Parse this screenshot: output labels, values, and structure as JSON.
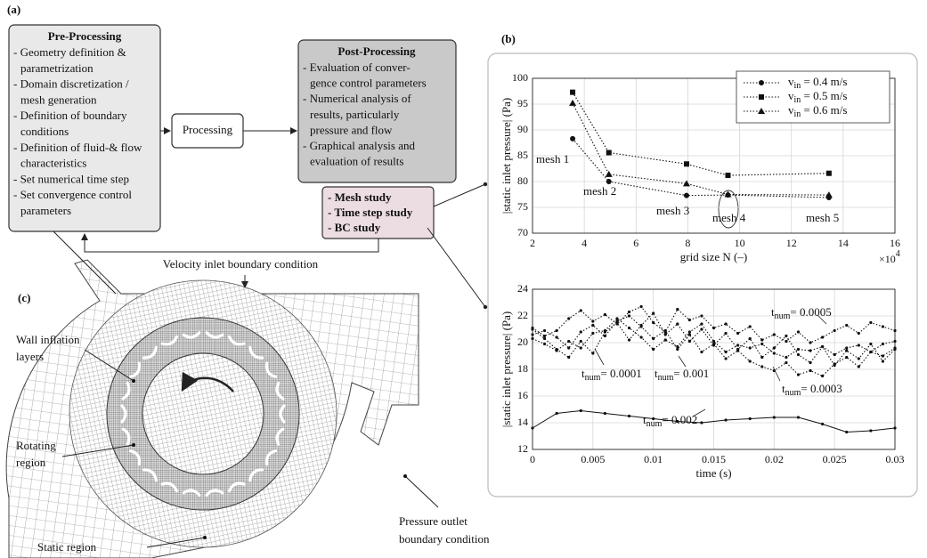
{
  "panel_labels": [
    "(a)",
    "(b)",
    "(c)"
  ],
  "flowchart": {
    "pre_processing": {
      "title": "Pre-Processing",
      "lines": [
        "- Geometry definition &",
        "parametrization",
        "- Domain discretization /",
        "mesh generation",
        "- Definition of boundary",
        "conditions",
        "- Definition of fluid-& flow",
        "characteristics",
        "- Set numerical time step",
        "- Set convergence control",
        "parameters"
      ]
    },
    "processing": "Processing",
    "post_processing": {
      "title": "Post-Processing",
      "lines": [
        "- Evaluation of conver-",
        "gence control parameters",
        "- Numerical analysis of",
        "results, particularly",
        "pressure and flow",
        "- Graphical analysis and",
        "evaluation of results"
      ]
    },
    "studies": [
      "- Mesh study",
      "- Time step study",
      "- BC study"
    ]
  },
  "mesh_labels": {
    "inlet": "Velocity inlet boundary condition",
    "wall": [
      "Wall inflation",
      "layers"
    ],
    "rotating": [
      "Rotating",
      "region"
    ],
    "static": "Static region",
    "outlet": [
      "Pressure outlet",
      "boundary condition"
    ]
  },
  "chart_data": [
    {
      "type": "line",
      "x_label": "grid size  N (–)",
      "y_label": "|static inlet pressure| (Pa)",
      "x_multiplier": {
        "base": "×10",
        "sup": "4"
      },
      "xlim": [
        2,
        16
      ],
      "xticks": [
        2,
        4,
        6,
        8,
        10,
        12,
        14,
        16
      ],
      "ylim": [
        70,
        100
      ],
      "yticks": [
        70,
        75,
        80,
        85,
        90,
        95,
        100
      ],
      "grid": true,
      "legend": "upper right",
      "series": [
        {
          "name": {
            "base": "v",
            "sub": "in",
            "rest": " = 0.4 m/s"
          },
          "color": "#111111",
          "marker": "circle",
          "x": [
            3.55,
            4.95,
            7.95,
            9.55,
            13.45
          ],
          "values": [
            88.3,
            80.0,
            77.3,
            77.4,
            76.9
          ]
        },
        {
          "name": {
            "base": "v",
            "sub": "in",
            "rest": " = 0.5 m/s"
          },
          "color": "#111111",
          "marker": "square",
          "x": [
            3.55,
            4.95,
            7.95,
            9.55,
            13.45
          ],
          "values": [
            97.3,
            85.6,
            83.4,
            81.2,
            81.6
          ]
        },
        {
          "name": {
            "base": "v",
            "sub": "in",
            "rest": " = 0.6 m/s"
          },
          "color": "#111111",
          "marker": "triangle",
          "x": [
            3.55,
            4.95,
            7.95,
            9.55,
            13.45
          ],
          "values": [
            95.2,
            81.4,
            79.6,
            77.5,
            77.4
          ]
        }
      ],
      "annotations": [
        "mesh 1",
        "mesh 2",
        "mesh 3",
        "mesh 4",
        "mesh 5"
      ]
    },
    {
      "type": "line",
      "x_label": "time (s)",
      "y_label": "|static inlet pressure| (Pa)",
      "xlim": [
        0,
        0.03
      ],
      "xticks": [
        0,
        0.005,
        0.01,
        0.015,
        0.02,
        0.025,
        0.03
      ],
      "ylim": [
        12,
        24
      ],
      "yticks": [
        12,
        14,
        16,
        18,
        20,
        22,
        24
      ],
      "grid": true,
      "series": [
        {
          "color": "#111111",
          "marker": "dot",
          "line_style": "dotted",
          "x": [
            0,
            0.001,
            0.002,
            0.003,
            0.004,
            0.005,
            0.006,
            0.007,
            0.008,
            0.009,
            0.01,
            0.011,
            0.012,
            0.013,
            0.014,
            0.015,
            0.016,
            0.017,
            0.018,
            0.019,
            0.02,
            0.021,
            0.022,
            0.023,
            0.024,
            0.025,
            0.026,
            0.027,
            0.028,
            0.029,
            0.03
          ],
          "values": [
            21.0,
            20.3,
            19.5,
            18.9,
            20.1,
            19.2,
            20.8,
            21.5,
            20.2,
            21.3,
            22.2,
            20.6,
            21.4,
            20.1,
            21.0,
            19.8,
            20.7,
            19.5,
            20.3,
            18.9,
            19.6,
            20.5,
            19.1,
            18.5,
            19.7,
            18.3,
            19.4,
            18.8,
            19.9,
            18.6,
            19.5
          ]
        },
        {
          "color": "#111111",
          "marker": "dot",
          "line_style": "dotted",
          "x": [
            0,
            0.001,
            0.002,
            0.003,
            0.004,
            0.005,
            0.006,
            0.007,
            0.008,
            0.009,
            0.01,
            0.011,
            0.012,
            0.013,
            0.014,
            0.015,
            0.016,
            0.017,
            0.018,
            0.019,
            0.02,
            0.021,
            0.022,
            0.023,
            0.024,
            0.025,
            0.026,
            0.027,
            0.028,
            0.029,
            0.03
          ],
          "values": [
            20.6,
            20.9,
            20.4,
            19.6,
            20.8,
            21.3,
            20.5,
            21.6,
            22.0,
            21.2,
            20.3,
            20.9,
            19.5,
            20.6,
            19.3,
            19.9,
            18.8,
            19.4,
            18.6,
            18.2,
            17.9,
            18.5,
            17.6,
            17.9,
            17.5,
            18.4,
            18.9,
            18.2,
            19.3,
            19.0,
            19.6
          ]
        },
        {
          "color": "#111111",
          "marker": "dot",
          "line_style": "dotted",
          "x": [
            0,
            0.001,
            0.002,
            0.003,
            0.004,
            0.005,
            0.006,
            0.007,
            0.008,
            0.009,
            0.01,
            0.011,
            0.012,
            0.013,
            0.014,
            0.015,
            0.016,
            0.017,
            0.018,
            0.019,
            0.02,
            0.021,
            0.022,
            0.023,
            0.024,
            0.025,
            0.026,
            0.027,
            0.028,
            0.029,
            0.03
          ],
          "values": [
            21.1,
            20.5,
            20.9,
            21.8,
            22.4,
            21.6,
            22.1,
            21.4,
            22.3,
            22.7,
            21.5,
            20.8,
            22.5,
            21.7,
            22.0,
            21.1,
            21.4,
            20.7,
            21.2,
            20.2,
            20.6,
            20.1,
            20.8,
            20.0,
            20.4,
            20.9,
            21.3,
            20.7,
            21.5,
            21.2,
            20.9
          ]
        },
        {
          "color": "#111111",
          "marker": "dot",
          "line_style": "dotted",
          "x": [
            0,
            0.001,
            0.002,
            0.003,
            0.004,
            0.005,
            0.006,
            0.007,
            0.008,
            0.009,
            0.01,
            0.011,
            0.012,
            0.013,
            0.014,
            0.015,
            0.016,
            0.017,
            0.018,
            0.019,
            0.02,
            0.021,
            0.022,
            0.023,
            0.024,
            0.025,
            0.026,
            0.027,
            0.028,
            0.029,
            0.03
          ],
          "values": [
            20.3,
            19.9,
            19.4,
            20.1,
            19.6,
            20.7,
            20.9,
            21.8,
            21.1,
            20.4,
            19.5,
            20.2,
            19.7,
            20.8,
            21.4,
            20.1,
            19.3,
            19.8,
            19.6,
            19.9,
            19.2,
            18.9,
            19.5,
            19.4,
            19.7,
            19.1,
            19.6,
            19.8,
            19.3,
            19.9,
            20.1
          ]
        },
        {
          "color": "#111111",
          "marker": "dot",
          "line_style": "solid",
          "x": [
            0,
            0.002,
            0.004,
            0.006,
            0.008,
            0.01,
            0.012,
            0.014,
            0.016,
            0.018,
            0.02,
            0.022,
            0.024,
            0.026,
            0.028,
            0.03
          ],
          "values": [
            13.6,
            14.7,
            14.9,
            14.7,
            14.5,
            14.3,
            14.1,
            14.0,
            14.2,
            14.3,
            14.4,
            14.4,
            13.9,
            13.3,
            13.4,
            13.6
          ]
        }
      ],
      "annotations": [
        {
          "base": "t",
          "sub": "num",
          "rest": "= 0.0001"
        },
        {
          "base": "t",
          "sub": "num",
          "rest": "= 0.0003"
        },
        {
          "base": "t",
          "sub": "num",
          "rest": "= 0.0005"
        },
        {
          "base": "t",
          "sub": "num",
          "rest": "= 0.001"
        },
        {
          "base": "t",
          "sub": "num",
          "rest": "= 0.002"
        }
      ]
    }
  ]
}
